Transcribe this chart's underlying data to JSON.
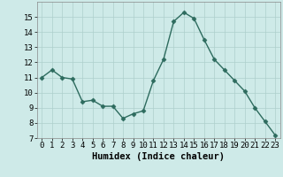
{
  "x": [
    0,
    1,
    2,
    3,
    4,
    5,
    6,
    7,
    8,
    9,
    10,
    11,
    12,
    13,
    14,
    15,
    16,
    17,
    18,
    19,
    20,
    21,
    22,
    23
  ],
  "y": [
    11.0,
    11.5,
    11.0,
    10.9,
    9.4,
    9.5,
    9.1,
    9.1,
    8.3,
    8.6,
    8.8,
    10.8,
    12.2,
    14.7,
    15.3,
    14.9,
    13.5,
    12.2,
    11.5,
    10.8,
    10.1,
    9.0,
    8.1,
    7.2
  ],
  "line_color": "#2d6b5e",
  "marker_color": "#2d6b5e",
  "bg_color": "#ceeae8",
  "grid_color": "#aecfcc",
  "xlabel": "Humidex (Indice chaleur)",
  "ylim": [
    7,
    16
  ],
  "xlim": [
    -0.5,
    23.5
  ],
  "yticks": [
    7,
    8,
    9,
    10,
    11,
    12,
    13,
    14,
    15
  ],
  "xticks": [
    0,
    1,
    2,
    3,
    4,
    5,
    6,
    7,
    8,
    9,
    10,
    11,
    12,
    13,
    14,
    15,
    16,
    17,
    18,
    19,
    20,
    21,
    22,
    23
  ],
  "xlabel_fontsize": 7.5,
  "tick_fontsize": 6.5,
  "marker_size": 2.5,
  "line_width": 1.0
}
